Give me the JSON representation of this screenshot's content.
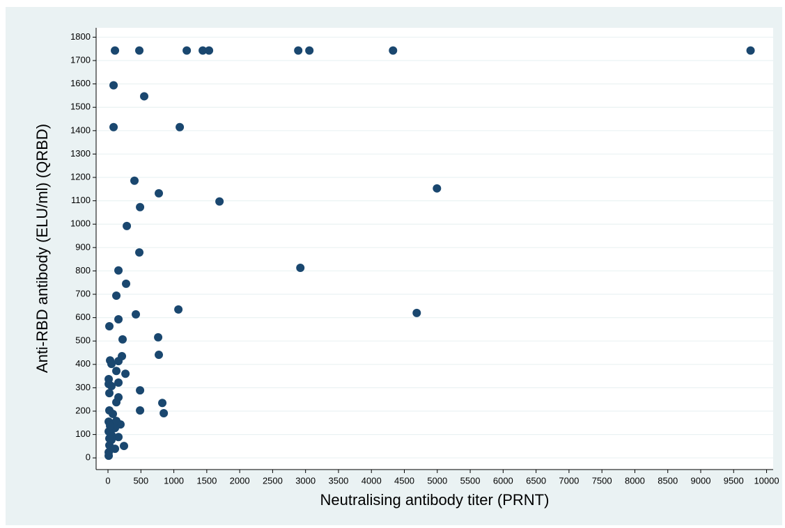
{
  "chart_data": {
    "type": "scatter",
    "xlabel": "Neutralising antibody titer (PRNT)",
    "ylabel": "Anti-RBD antibody (ELU/ml) (QRBD)",
    "color": "#1a476f",
    "grid": true,
    "xlim": [
      -180,
      10100
    ],
    "ylim": [
      -50,
      1840
    ],
    "xticks": [
      0,
      500,
      1000,
      1500,
      2000,
      2500,
      3000,
      3500,
      4000,
      4500,
      5000,
      5500,
      6000,
      6500,
      7000,
      7500,
      8000,
      8500,
      9000,
      9500,
      10000
    ],
    "yticks": [
      0,
      100,
      200,
      300,
      400,
      500,
      600,
      700,
      800,
      900,
      1000,
      1100,
      1200,
      1300,
      1400,
      1500,
      1600,
      1700,
      1800
    ],
    "x": [
      106,
      476,
      1196,
      1439,
      1534,
      2889,
      3058,
      4328,
      9757,
      85,
      550,
      85,
      1090,
      402,
      4995,
      772,
      1693,
      487,
      286,
      476,
      2921,
      159,
      275,
      127,
      4688,
      1069,
      423,
      21,
      159,
      762,
      222,
      772,
      212,
      32,
      53,
      159,
      127,
      265,
      11,
      11,
      159,
      53,
      21,
      159,
      127,
      487,
      825,
      847,
      487,
      21,
      74,
      11,
      190,
      106,
      11,
      159,
      243,
      21,
      53,
      106,
      11,
      11,
      74,
      53,
      21,
      127,
      32
    ],
    "values": [
      1743,
      1743,
      1743,
      1743,
      1743,
      1743,
      1743,
      1743,
      1743,
      1594,
      1547,
      1415,
      1415,
      1186,
      1153,
      1132,
      1097,
      1073,
      992,
      879,
      813,
      802,
      745,
      694,
      620,
      635,
      614,
      563,
      593,
      516,
      507,
      441,
      435,
      417,
      402,
      414,
      372,
      360,
      337,
      316,
      322,
      307,
      277,
      259,
      238,
      289,
      235,
      191,
      203,
      203,
      188,
      155,
      143,
      128,
      113,
      89,
      51,
      54,
      77,
      39,
      24,
      9,
      143,
      98,
      83,
      158,
      137
    ]
  }
}
